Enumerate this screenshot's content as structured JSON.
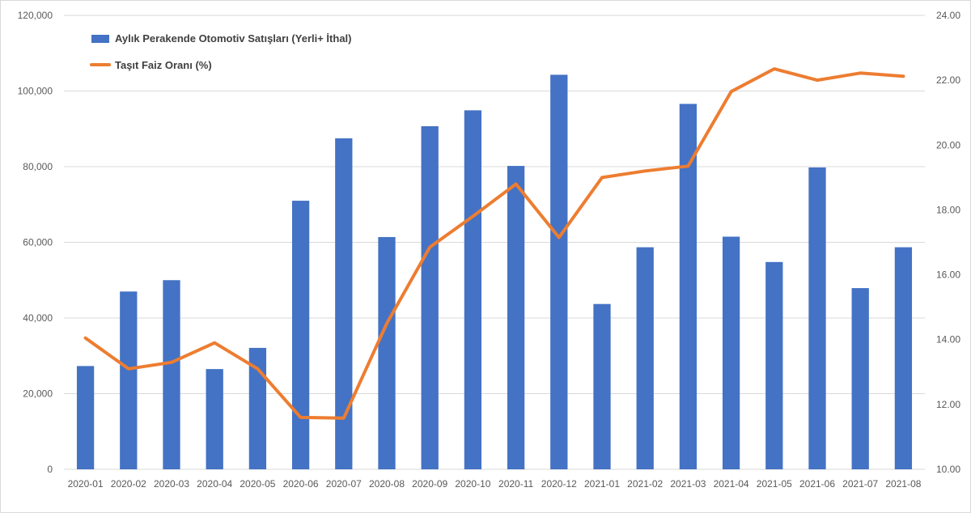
{
  "chart_data": {
    "type": "bar+line",
    "title": "",
    "xlabel": "",
    "ylabel": "",
    "y2label": "",
    "categories": [
      "2020-01",
      "2020-02",
      "2020-03",
      "2020-04",
      "2020-05",
      "2020-06",
      "2020-07",
      "2020-08",
      "2020-09",
      "2020-10",
      "2020-11",
      "2020-12",
      "2021-01",
      "2021-02",
      "2021-03",
      "2021-04",
      "2021-05",
      "2021-06",
      "2021-07",
      "2021-08"
    ],
    "series": [
      {
        "name": "Aylık Perakende Otomotiv Satışları (Yerli+ İthal)",
        "type": "bar",
        "axis": "left",
        "color": "#4472C4",
        "values": [
          27300,
          47000,
          50000,
          26500,
          32100,
          71000,
          87500,
          61400,
          90700,
          94900,
          80200,
          104300,
          43700,
          58700,
          96600,
          61500,
          54800,
          79800,
          47900,
          58700
        ]
      },
      {
        "name": "Taşıt Faiz Oranı (%)",
        "type": "line",
        "axis": "right",
        "color": "#ED7D31",
        "values": [
          14.05,
          13.1,
          13.3,
          13.9,
          13.1,
          11.6,
          11.58,
          14.5,
          16.85,
          17.8,
          18.8,
          17.15,
          19.0,
          19.2,
          19.35,
          21.65,
          22.35,
          22.0,
          22.22,
          22.12
        ]
      }
    ],
    "y_left": {
      "min": 0,
      "max": 120000,
      "ticks": [
        "0",
        "20,000",
        "40,000",
        "60,000",
        "80,000",
        "100,000",
        "120,000"
      ]
    },
    "y_right": {
      "min": 10,
      "max": 24,
      "ticks": [
        "10.00",
        "12.00",
        "14.00",
        "16.00",
        "18.00",
        "20.00",
        "22.00",
        "24.00"
      ]
    },
    "grid": true,
    "legend_position": "top-left"
  }
}
